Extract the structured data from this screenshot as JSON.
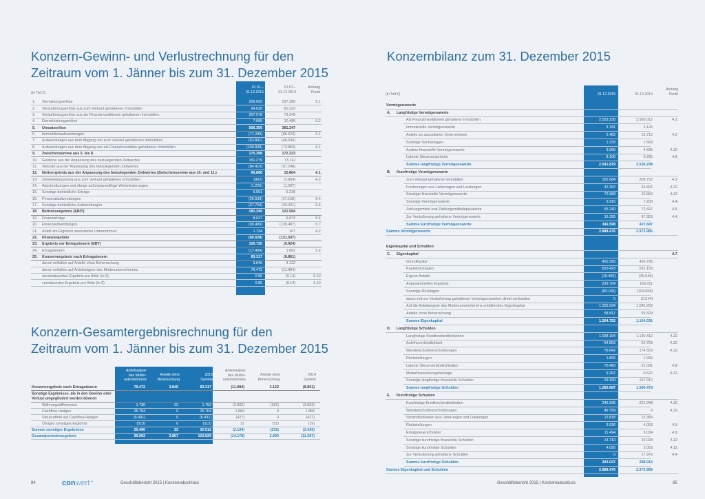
{
  "left": {
    "title1": "Konzern-Gewinn- und Verlustrechnung für den",
    "title2": "Zeitraum vom 1. Jänner bis zum 31. Dezember 2015",
    "unit": "(in Tsd €)",
    "col1": "01.01.–\n31.12.2015",
    "col2": "01.01.–\n31.12.2014",
    "col3": "Anhang\nPunkt",
    "rows": [
      [
        "1.",
        "Vermietungserlöse",
        "226.093",
        "237.288",
        "5.1.",
        ""
      ],
      [
        "2.",
        "Veräußerungserlöse aus zum Verkauf gehaltenen Immobilien",
        "64.620",
        "60.223",
        "",
        ""
      ],
      [
        "3.",
        "Veräußerungserlöse aus als Finanzinvestitionen gehaltenen Immobilien",
        "207.978",
        "73.249",
        "",
        ""
      ],
      [
        "4.",
        "Dienstleistungserlöse",
        "7.665",
        "10.488",
        "5.2.",
        ""
      ],
      [
        "5.",
        "Umsatzerlöse",
        "506.356",
        "381.247",
        "",
        "b"
      ],
      [
        "6.",
        "Immobilienaufwendungen",
        "(77.289)",
        "(86.620)",
        "5.1.",
        ""
      ],
      [
        "7.",
        "Aufwendungen aus dem Abgang von zum Verkauf gehaltenen Immobilien",
        "(52.831)",
        "(48.545)",
        "",
        ""
      ],
      [
        "8.",
        "Aufwendungen aus dem Abgang von als Finanzinvestition gehaltenen Immobilien",
        "(200.838)",
        "(73.859)",
        "4.1.",
        ""
      ],
      [
        "9.",
        "Zwischensumme aus 5. bis 8.",
        "175.398",
        "172.223",
        "",
        "b"
      ],
      [
        "10.",
        "Gewinne aus der Anpassung des beizulegenden Zeitwertes",
        "151.279",
        "73.112",
        "",
        ""
      ],
      [
        "11.",
        "Verluste aus der Anpassung des beizulegenden Zeitwertes",
        "(84.410)",
        "(57.248)",
        "",
        ""
      ],
      [
        "12.",
        "Nettoergebnis aus der Anpassung des beizulegenden Zeitwertes (Zwischensumme aus 10. und 11.)",
        "66.868",
        "15.864",
        "4.1.",
        "b"
      ],
      [
        "13.",
        "Zeitwertanpassung aus zum Verkauf gehaltenen Immobilien",
        "(902)",
        "(2.864)",
        "4.3.",
        ""
      ],
      [
        "14.",
        "Abschreibungen und übrige außerplanmäßige Wertminderungen",
        "(1.225)",
        "(1.287)",
        "",
        ""
      ],
      [
        "15.",
        "Sonstige betriebliche Erträge",
        "5.561",
        "5.238",
        "",
        ""
      ],
      [
        "16.",
        "Personalaufwendungen",
        "(26.593)",
        "(27.169)",
        "5.4.",
        ""
      ],
      [
        "17.",
        "Sonstige betriebliche Aufwendungen",
        "(37.759)",
        "(40.421)",
        "5.5.",
        ""
      ],
      [
        "18.",
        "Betriebsergebnis (EBIT)",
        "181.349",
        "121.584",
        "",
        "b"
      ],
      [
        "19.",
        "Finanzerträge",
        "8.637",
        "6.873",
        "5.6.",
        ""
      ],
      [
        "20.",
        "Finanzaufwendungen",
        "(90.400)",
        "(138.487)",
        "5.7.",
        ""
      ],
      [
        "21.",
        "Anteil am Ergebnis assoziierter Unternehmen",
        "1.134",
        "107",
        "4.2.",
        ""
      ],
      [
        "22.",
        "Finanzergebnis",
        "(80.628)",
        "(131.507)",
        "",
        "b"
      ],
      [
        "23.",
        "Ergebnis vor Ertragsteuern (EBT)",
        "100.720",
        "(9.924)",
        "",
        "b"
      ],
      [
        "24.",
        "Ertragsteuern",
        "(17.404)",
        "1.062",
        "5.9.",
        ""
      ],
      [
        "25.",
        "Konzernergebnis nach Ertragsteuern",
        "83.317",
        "(8.861)",
        "",
        "b"
      ],
      [
        "",
        "davon entfallen auf Anteile ohne Beherrschung",
        "3.845",
        "3.122",
        "",
        ""
      ],
      [
        "",
        "davon entfallen auf Anteilseigner des Mutterunternehmens",
        "79.472",
        "(11.984)",
        "",
        ""
      ],
      [
        "",
        "unverwässertes Ergebnis pro Aktie (in €)",
        "0.95",
        "(0.14)",
        "5.10.",
        ""
      ],
      [
        "",
        "verwässertes Ergebnis pro Aktie (in €)",
        "0.85",
        "(0.14)",
        "5.10.",
        ""
      ]
    ]
  },
  "oci": {
    "title1": "Konzern-Gesamtergebnisrechnung für den",
    "title2": "Zeitraum vom 1. Jänner bis zum 31. Dezember 2015",
    "headers": [
      "Anteilseigner\ndes Mutter-\nunternehmens",
      "Anteile ohne\nBeherrschung",
      "2015\nSumme",
      "Anteilseigner\ndes Mutter-\nunternehmens",
      "Anteile ohne\nBeherrschung",
      "2014\nSumme"
    ],
    "rows": [
      [
        "Konzernergebnis nach Ertragsteuern",
        "79.472",
        "3.845",
        "83.317",
        "(11.984)",
        "3.122",
        "(8.861)",
        "b"
      ],
      [
        "Sonstige Ergebnisse, die in den Gewinn oder Verlust umgegliedert werden können",
        "",
        "",
        "",
        "",
        "",
        "",
        "h2"
      ],
      [
        "Währungsdifferenzen",
        "1.730",
        "22",
        "1.752",
        "(3.682)",
        "(182)",
        "(3.863)",
        "i"
      ],
      [
        "Cashflow Hedges",
        "25.704",
        "0",
        "25.704",
        "1.884",
        "0",
        "1.884",
        "i"
      ],
      [
        "Steuereffekt auf Cashflow Hedges",
        "(6.431)",
        "0",
        "(6.431)",
        "(427)",
        "0",
        "(427)",
        "i"
      ],
      [
        "Übriges sonstiges Ergebnis",
        "(513)",
        "0",
        "(513)",
        "31",
        "(51)",
        "(19)",
        "i"
      ],
      [
        "Summe sonstiger Ergebnisse",
        "20.490",
        "22",
        "20.512",
        "(2.194)",
        "(232)",
        "(2.426)",
        "s"
      ],
      [
        "Gesamtperiodenergebnis",
        "99.962",
        "3.867",
        "103.829",
        "(14.178)",
        "2.890",
        "(11.287)",
        "s"
      ]
    ]
  },
  "right": {
    "title": "Konzernbilanz zum 31. Dezember 2015",
    "unit": "(in Tsd €)",
    "col1": "31.12.2015",
    "col2": "31.12.2014",
    "col3": "Anhang\nPunkt",
    "rows": [
      [
        "",
        "Vermögenswerte",
        "",
        "",
        "",
        "h"
      ],
      [
        "A.",
        "Langfristige Vermögenswerte",
        "",
        "",
        "",
        "h"
      ],
      [
        "",
        "Als Finanzinvestitionen gehaltene Immobilien",
        "2.523.230",
        "2.505.012",
        "4.1.",
        "x"
      ],
      [
        "",
        "Immaterielle Vermögenswerte",
        "3.781",
        "3.126",
        "",
        "x"
      ],
      [
        "",
        "Anteile an assoziierten Unternehmen",
        "2.462",
        "15.712",
        "4.2.",
        "x"
      ],
      [
        "",
        "Sonstige Sachanlagen",
        "1.233",
        "1.569",
        "",
        "x"
      ],
      [
        "",
        "Andere finanzielle Vermögenswerte",
        "3.066",
        "4.595",
        "4.12.",
        "x"
      ],
      [
        "",
        "Latente Steueransprüche",
        "8.106",
        "6.285",
        "4.8.",
        "x"
      ],
      [
        "",
        "Summe langfristige Vermögenswerte",
        "2.541.879",
        "2.536.298",
        "",
        "sx"
      ],
      [
        "B.",
        "Kurzfristige Vermögenswerte",
        "",
        "",
        "",
        "h"
      ],
      [
        "",
        "Zum Verkauf gehaltene Immobilien",
        "152.684",
        "209.752",
        "4.3.",
        "x"
      ],
      [
        "",
        "Forderungen aus Lieferungen und Leistungen",
        "42.397",
        "34.821",
        "4.12.",
        "x"
      ],
      [
        "",
        "Sonstige finanzielle Vermögenswerte",
        "72.968",
        "15.863",
        "4.12.",
        "x"
      ],
      [
        "",
        "Sonstige Vermögenswerte",
        "6.915",
        "7.200",
        "4.4.",
        "x"
      ],
      [
        "",
        "Zahlungsmittel und Zahlungsmitteläquivalente",
        "55.240",
        "72.697",
        "4.5.",
        "x"
      ],
      [
        "",
        "Zur Veräußerung gehaltene Vermögenswerte",
        "16.395",
        "97.353",
        "4.4.",
        "x"
      ],
      [
        "",
        "Summe kurzfristige Vermögenswerte",
        "346.598",
        "437.687",
        "",
        "sx"
      ],
      [
        "",
        "Summe Vermögenswerte",
        "2.888.476",
        "2.973.985",
        "",
        "s"
      ],
      [
        "",
        "",
        "",
        "",
        "",
        "gap"
      ],
      [
        "",
        "Eigenkapital und Schulden",
        "",
        "",
        "",
        "h"
      ],
      [
        "C.",
        "Eigenkapital",
        "",
        "",
        "4.7.",
        "h"
      ],
      [
        "",
        "Grundkapital",
        "450.326",
        "426.796",
        "",
        "x"
      ],
      [
        "",
        "Kapitalrücklagen",
        "620.423",
        "591.159",
        "",
        "x"
      ],
      [
        "",
        "Eigene Anteile",
        "(15.400)",
        "(25.046)",
        "",
        "x"
      ],
      [
        "",
        "Angesammeltes Ergebnis",
        "233.754",
        "156.011",
        "",
        "x"
      ],
      [
        "",
        "Sonstige Rücklagen",
        "(83.168)",
        "(103.658)",
        "",
        "x"
      ],
      [
        "",
        "davon mit zur Veräußerung gehaltenen Vermögenswerten direkt verbunden",
        "0",
        "(2.514)",
        "",
        "ix"
      ],
      [
        "",
        "Auf die Anteilseigner des Mutterunternehmens entfallendes Eigenkapital",
        "1.205.934",
        "1.045.262",
        "",
        "x"
      ],
      [
        "",
        "Anteile ohne Beherrschung",
        "58.817",
        "59.329",
        "",
        "x"
      ],
      [
        "",
        "Summe Eigenkapital",
        "1.264.752",
        "1.104.591",
        "",
        "sx"
      ],
      [
        "D.",
        "Langfristige Schulden",
        "",
        "",
        "",
        "h"
      ],
      [
        "",
        "Langfristige Kreditverbindlichkeiten",
        "1.028.194",
        "1.130.412",
        "4.12.",
        "x"
      ],
      [
        "",
        "Anleiheverbindlichkeit",
        "64.853",
        "64.759",
        "4.12.",
        "x"
      ],
      [
        "",
        "Wandelschuldverschreibungen",
        "76.842",
        "174.553",
        "4.12.",
        "x"
      ],
      [
        "",
        "Rückstellungen",
        "1.892",
        "1.930",
        "",
        "x"
      ],
      [
        "",
        "Latente Steuerverbindlichkeiten",
        "70.480",
        "51.091",
        "4.8.",
        "x"
      ],
      [
        "",
        "Mieterfinanzierungsbeiträge",
        "9.267",
        "9.622",
        "4.12.",
        "x"
      ],
      [
        "",
        "Sonstige langfristige finanzielle Schulden",
        "29.159",
        "157.912",
        "",
        "x"
      ],
      [
        "",
        "Summe langfristige Schulden",
        "1.280.687",
        "1.580.479",
        "",
        "sx"
      ],
      [
        "E.",
        "Kurzfristige Schulden",
        "",
        "",
        "",
        "h"
      ],
      [
        "",
        "Kurzfristige Kreditverbindlichkeiten",
        "246.296",
        "221.348",
        "4.12.",
        "x"
      ],
      [
        "",
        "Wandelschuldverschreibungen",
        "49.759",
        "0",
        "4.12.",
        "x"
      ],
      [
        "",
        "Verbindlichkeiten aus Lieferungen und Leistungen",
        "12.818",
        "13.389",
        "",
        "x"
      ],
      [
        "",
        "Rückstellungen",
        "3.936",
        "4.053",
        "4.9.",
        "x"
      ],
      [
        "",
        "Ertragsteuerschulden",
        "11.494",
        "9.034",
        "4.9.",
        "x"
      ],
      [
        "",
        "Sonstige kurzfristige finanzielle Schulden",
        "14.710",
        "20.028",
        "4.12.",
        "x"
      ],
      [
        "",
        "Sonstige kurzfristige Schulden",
        "4.025",
        "3.083",
        "4.11.",
        "x"
      ],
      [
        "",
        "Zur Veräußerung gehaltene Schulden",
        "0",
        "17.979",
        "4.4.",
        "x"
      ],
      [
        "",
        "Summe kurzfristige Schulden",
        "343.037",
        "288.915",
        "",
        "sx"
      ],
      [
        "",
        "Summe Eigenkapital und Schulden",
        "2.888.476",
        "2.973.985",
        "",
        "s"
      ]
    ]
  },
  "footer": {
    "left_page": "84",
    "right_page": "85",
    "logo": "conwert",
    "left_text": "Geschäftsbericht 2015 | Konzernabschluss",
    "right_text": "Geschäftsbericht 2015 | Konzernabschluss"
  },
  "colors": {
    "accent": "#1f76b4",
    "title": "#2f6e99",
    "background": "#eef1f6"
  }
}
